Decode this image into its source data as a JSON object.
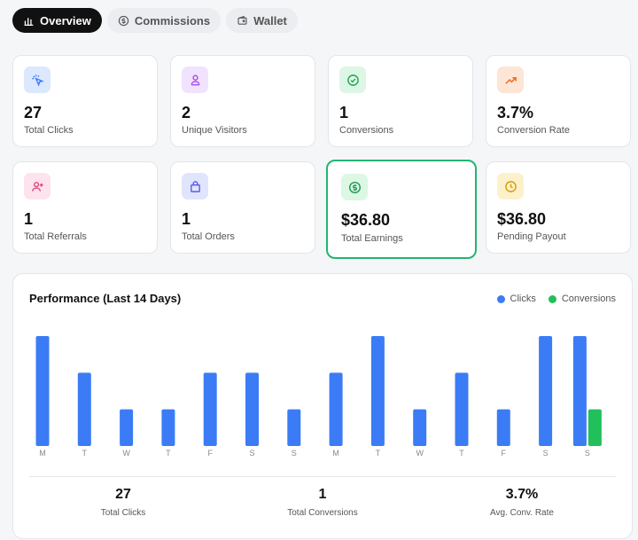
{
  "tabs": [
    {
      "label": "Overview",
      "icon": "bar-chart-icon",
      "active": true
    },
    {
      "label": "Commissions",
      "icon": "dollar-circle-icon",
      "active": false
    },
    {
      "label": "Wallet",
      "icon": "wallet-icon",
      "active": false
    }
  ],
  "stats": [
    {
      "value": "27",
      "label": "Total Clicks",
      "icon": "cursor-click-icon",
      "bg": "#dbe8fd",
      "fg": "#3b7cf6"
    },
    {
      "value": "2",
      "label": "Unique Visitors",
      "icon": "users-icon",
      "bg": "#f1e3fd",
      "fg": "#a44ee6"
    },
    {
      "value": "1",
      "label": "Conversions",
      "icon": "check-circle-icon",
      "bg": "#dcf7e4",
      "fg": "#22a35a"
    },
    {
      "value": "3.7%",
      "label": "Conversion Rate",
      "icon": "trending-up-icon",
      "bg": "#fde6d6",
      "fg": "#ef6a1f"
    },
    {
      "value": "1",
      "label": "Total Referrals",
      "icon": "user-plus-icon",
      "bg": "#fde3ee",
      "fg": "#e0457d"
    },
    {
      "value": "1",
      "label": "Total Orders",
      "icon": "shopping-bag-icon",
      "bg": "#e1e4fd",
      "fg": "#5b5be6"
    },
    {
      "value": "$36.80",
      "label": "Total Earnings",
      "icon": "dollar-circle-icon",
      "bg": "#dcf7e4",
      "fg": "#1f9a52"
    },
    {
      "value": "$36.80",
      "label": "Pending Payout",
      "icon": "clock-icon",
      "bg": "#fdf1cc",
      "fg": "#d89a07"
    }
  ],
  "panel": {
    "title": "Performance (Last 14 Days)",
    "legend": [
      {
        "label": "Clicks",
        "color": "#3b7cf6"
      },
      {
        "label": "Conversions",
        "color": "#22c05a"
      }
    ],
    "summary": [
      {
        "value": "27",
        "label": "Total Clicks"
      },
      {
        "value": "1",
        "label": "Total Conversions"
      },
      {
        "value": "3.7%",
        "label": "Avg. Conv. Rate"
      }
    ]
  },
  "chart_data": {
    "type": "bar",
    "categories": [
      "M",
      "T",
      "W",
      "T",
      "F",
      "S",
      "S",
      "M",
      "T",
      "W",
      "T",
      "F",
      "S",
      "S"
    ],
    "series": [
      {
        "name": "Clicks",
        "color": "#3b7cf6",
        "values": [
          3,
          2,
          1,
          1,
          2,
          2,
          1,
          2,
          3,
          1,
          2,
          1,
          3,
          3
        ]
      },
      {
        "name": "Conversions",
        "color": "#22c05a",
        "values": [
          0,
          0,
          0,
          0,
          0,
          0,
          0,
          0,
          0,
          0,
          0,
          0,
          0,
          1
        ]
      }
    ],
    "ylim": [
      0,
      3
    ],
    "grid": false,
    "legend": "top-right"
  }
}
